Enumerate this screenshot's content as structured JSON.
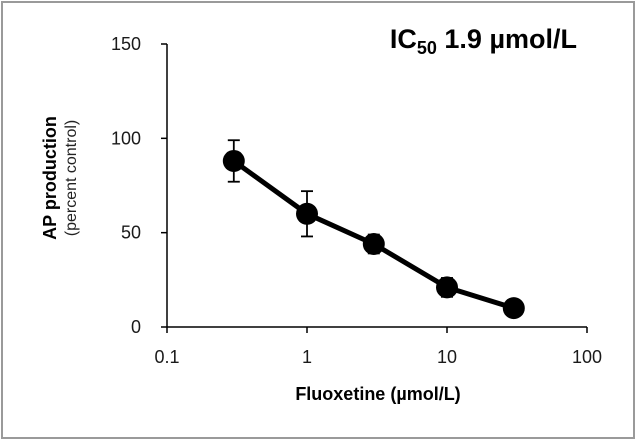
{
  "chart_data": {
    "type": "line",
    "title_main": "IC",
    "title_subscript": "50",
    "title_rest": " 1.9 µmol/L",
    "xlabel": "Fluoxetine (µmol/L)",
    "ylabel": "AP production",
    "ylabel_sub": "(percent control)",
    "x_scale": "log",
    "xlim": [
      0.1,
      100
    ],
    "ylim": [
      0,
      150
    ],
    "x_ticks": [
      0.1,
      1,
      10,
      100
    ],
    "x_tick_labels": [
      "0.1",
      "1",
      "10",
      "100"
    ],
    "y_ticks": [
      0,
      50,
      100,
      150
    ],
    "y_tick_labels": [
      "0",
      "50",
      "100",
      "150"
    ],
    "grid": false,
    "legend": "none",
    "series": [
      {
        "x": [
          0.3,
          1,
          3,
          10,
          30
        ],
        "y": [
          88,
          60,
          44,
          21,
          10
        ],
        "error": [
          11,
          12,
          5,
          5,
          2
        ],
        "color": "#000000",
        "marker": "circle"
      }
    ]
  }
}
